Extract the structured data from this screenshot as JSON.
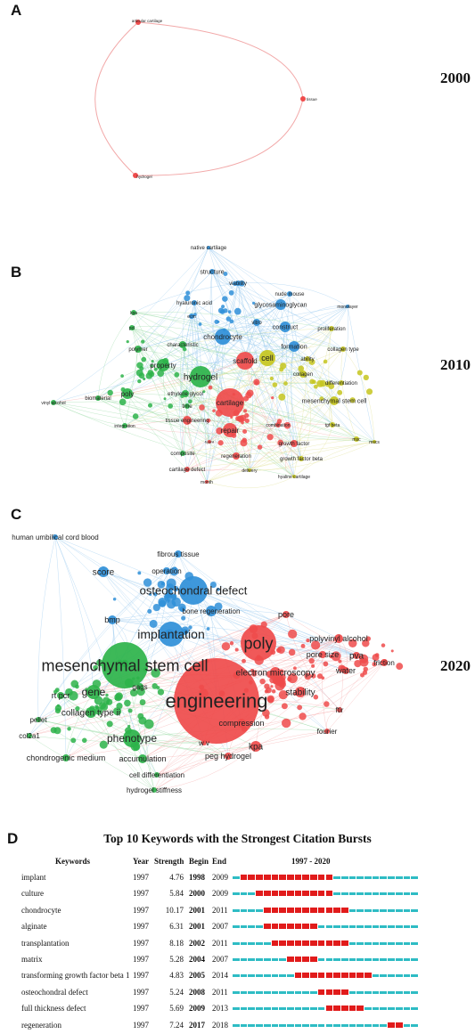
{
  "panels": {
    "A": {
      "letter": "A",
      "year": "2000"
    },
    "B": {
      "letter": "B",
      "year": "2010"
    },
    "C": {
      "letter": "C",
      "year": "2020"
    },
    "D": {
      "letter": "D"
    }
  },
  "colors": {
    "red": "#ef4b4b",
    "green": "#2db34a",
    "blue": "#2f8fd8",
    "yellow": "#c5c51e",
    "teal": "#2ebcc4",
    "burst": "#e11b1b"
  },
  "network_a": {
    "nodes": [
      {
        "label": "articular cartilage",
        "cluster": "red"
      },
      {
        "label": "tissue",
        "cluster": "red"
      },
      {
        "label": "hydrogel",
        "cluster": "red"
      }
    ]
  },
  "network_b": {
    "labels": [
      "native cartilage",
      "structure",
      "viability",
      "nude mouse",
      "hyaluronic acid",
      "glycosaminoglycan",
      "monolayer",
      "kpa",
      "ecm",
      "vitro",
      "construct",
      "proliferation",
      "pcl",
      "characteristic",
      "chondrocyte",
      "polymer",
      "formation",
      "collagen type",
      "ability",
      "cell",
      "property",
      "scaffold",
      "hydrogel",
      "collagen",
      "differentiation",
      "poly",
      "ethylene glycol",
      "biomaterial",
      "time",
      "cartilage",
      "vinyl alcohol",
      "tissue engineering",
      "mesenchymal stem cell",
      "combination",
      "tgf beta",
      "msc",
      "mscs",
      "integration",
      "repair",
      "growth factor",
      "hyaline cartilage",
      "composite",
      "regeneration",
      "growth factor beta",
      "cartilage defect",
      "delivery",
      "month",
      "hyanil"
    ]
  },
  "network_c": {
    "labels": [
      "human umbilical cord blood",
      "fibrous tissue",
      "operation",
      "score",
      "osteochondral defect",
      "bone regeneration",
      "bmp",
      "implantation",
      "pore",
      "poly",
      "polyvinyl alcohol",
      "pore size",
      "pva",
      "friction",
      "water",
      "electron microscopy",
      "mesenchymal stem cell",
      "gags",
      "stability",
      "gene",
      "rt pcr",
      "engineering",
      "collagen type ii",
      "ftir",
      "pellet",
      "compression",
      "col2a1",
      "phenotype",
      "fourier",
      "kpa",
      "w v",
      "chondrogenic medium",
      "peg hydrogel",
      "accumulation",
      "cell differentiation",
      "hydrogel stiffness"
    ]
  },
  "bursts": {
    "title": "Top 10 Keywords with the Strongest Citation Bursts",
    "headers": {
      "keywords": "Keywords",
      "year": "Year",
      "strength": "Strength",
      "begin": "Begin",
      "end": "End",
      "range": "1997 - 2020"
    },
    "range_start": 1997,
    "range_end": 2020,
    "rows": [
      {
        "keyword": "implant",
        "year": "1997",
        "strength": "4.76",
        "begin": "1998",
        "end": "2009"
      },
      {
        "keyword": "culture",
        "year": "1997",
        "strength": "5.84",
        "begin": "2000",
        "end": "2009"
      },
      {
        "keyword": "chondrocyte",
        "year": "1997",
        "strength": "10.17",
        "begin": "2001",
        "end": "2011"
      },
      {
        "keyword": "alginate",
        "year": "1997",
        "strength": "6.31",
        "begin": "2001",
        "end": "2007"
      },
      {
        "keyword": "transplantation",
        "year": "1997",
        "strength": "8.18",
        "begin": "2002",
        "end": "2011"
      },
      {
        "keyword": "matrix",
        "year": "1997",
        "strength": "5.28",
        "begin": "2004",
        "end": "2007"
      },
      {
        "keyword": "transforming growth factor beta 1",
        "year": "1997",
        "strength": "4.83",
        "begin": "2005",
        "end": "2014"
      },
      {
        "keyword": "osteochondral defect",
        "year": "1997",
        "strength": "5.24",
        "begin": "2008",
        "end": "2011"
      },
      {
        "keyword": "full thickness defect",
        "year": "1997",
        "strength": "5.69",
        "begin": "2009",
        "end": "2013"
      },
      {
        "keyword": "regeneration",
        "year": "1997",
        "strength": "7.24",
        "begin": "2017",
        "end": "2018"
      }
    ]
  }
}
